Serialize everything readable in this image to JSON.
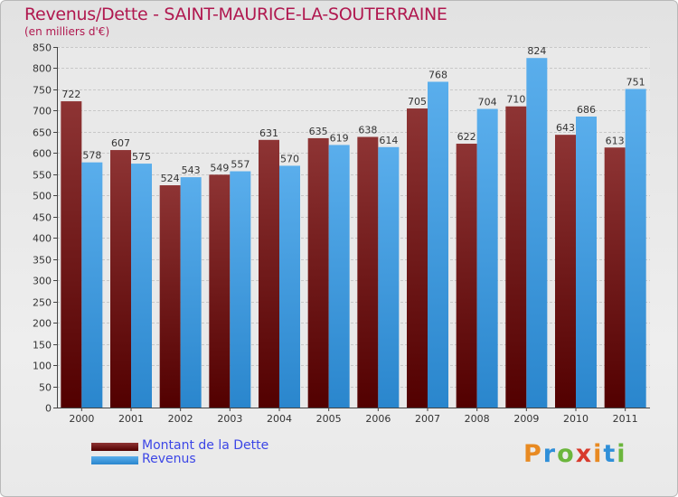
{
  "header": {
    "title": "Revenus/Dette - SAINT-MAURICE-LA-SOUTERRAINE",
    "subtitle": "(en milliers d'€)"
  },
  "legend": {
    "items": [
      {
        "label": "Montant de la Dette",
        "color": "#6b1a1a"
      },
      {
        "label": "Revenus",
        "color": "#3d98e0"
      }
    ]
  },
  "logo": {
    "letters": [
      "P",
      "r",
      "o",
      "x",
      "i",
      "t",
      "i"
    ],
    "colors": [
      "#e88a22",
      "#2f8fd8",
      "#6bb63c",
      "#d83a2c",
      "#e88a22",
      "#2f8fd8",
      "#6bb63c"
    ]
  },
  "chart_data": {
    "type": "bar",
    "title": "Revenus/Dette - SAINT-MAURICE-LA-SOUTERRAINE",
    "subtitle": "(en milliers d'€)",
    "categories": [
      "2000",
      "2001",
      "2002",
      "2003",
      "2004",
      "2005",
      "2006",
      "2007",
      "2008",
      "2009",
      "2010",
      "2011"
    ],
    "series": [
      {
        "name": "Montant de la Dette",
        "color": "#6b1a1a",
        "values": [
          722,
          607,
          524,
          549,
          631,
          635,
          638,
          705,
          622,
          710,
          643,
          613
        ]
      },
      {
        "name": "Revenus",
        "color": "#3d98e0",
        "values": [
          578,
          575,
          543,
          557,
          570,
          619,
          614,
          768,
          704,
          824,
          686,
          751
        ]
      }
    ],
    "ylim": [
      0,
      850
    ],
    "yticks": [
      0,
      50,
      100,
      150,
      200,
      250,
      300,
      350,
      400,
      450,
      500,
      550,
      600,
      650,
      700,
      750,
      800,
      850
    ],
    "grid": true,
    "legend_position": "bottom-left"
  }
}
